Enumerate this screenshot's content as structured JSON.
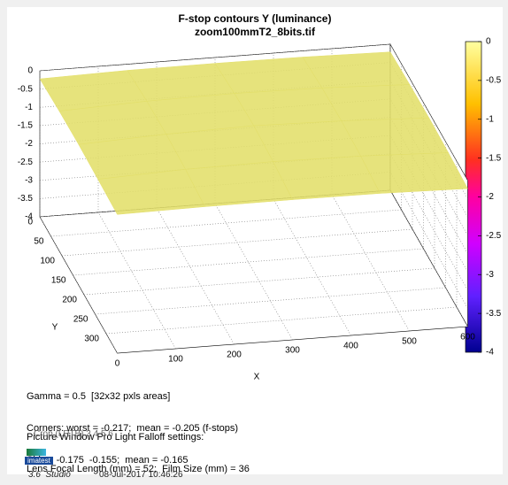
{
  "chart_data": {
    "type": "surface",
    "title": "F-stop contours   Y (luminance)",
    "subtitle": "zoom100mmT2_8bits.tif",
    "xlabel": "X",
    "ylabel": "Y",
    "xlim": [
      0,
      600
    ],
    "xticks": [
      0,
      100,
      200,
      300,
      400,
      500,
      600
    ],
    "ylim": [
      0,
      350
    ],
    "yticks": [
      0,
      50,
      100,
      150,
      200,
      250,
      300
    ],
    "zlim": [
      -4,
      0
    ],
    "zticks": [
      0,
      -0.5,
      -1,
      -1.5,
      -2,
      -2.5,
      -3,
      -3.5,
      -4
    ],
    "clim": [
      -4,
      0
    ],
    "cticks": [
      0,
      -0.5,
      -1,
      -1.5,
      -2,
      -2.5,
      -3,
      -3.5,
      -4
    ],
    "grid": true,
    "color": "#e3df6a",
    "surface": {
      "x": [
        0,
        150,
        300,
        450,
        600
      ],
      "y": [
        0,
        87.5,
        175,
        262.5,
        350
      ],
      "z": [
        [
          -0.22,
          -0.17,
          -0.16,
          -0.17,
          -0.21
        ],
        [
          -0.17,
          -0.08,
          -0.05,
          -0.08,
          -0.17
        ],
        [
          -0.15,
          -0.05,
          0,
          -0.05,
          -0.15
        ],
        [
          -0.17,
          -0.08,
          -0.05,
          -0.08,
          -0.17
        ],
        [
          -0.2,
          -0.17,
          -0.16,
          -0.17,
          -0.22
        ]
      ]
    }
  },
  "notes": {
    "stats": [
      "Gamma = 0.5  [32x32 pxls areas]",
      "Corners: worst = -0.217;  mean = -0.205 (f-stops)",
      "Sides: -0.175  -0.155;  mean = -0.165"
    ],
    "settings": [
      "Picture Window Pro Light Falloff settings:",
      "Lens Focal Length (mm) = 52;  Film Size (mm) = 36"
    ],
    "crop": "Crop (LRTB) 3 4 5 6"
  },
  "footer": {
    "logo": "imatest",
    "version": "3.6  Studio",
    "timestamp": "08-Jul-2017 10:46:26"
  }
}
